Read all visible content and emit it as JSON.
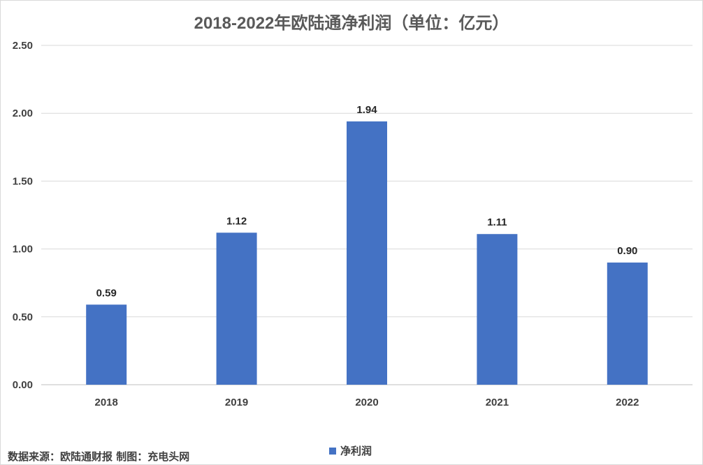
{
  "chart_data": {
    "type": "bar",
    "title": "2018-2022年欧陆通净利润（单位：亿元）",
    "categories": [
      "2018",
      "2019",
      "2020",
      "2021",
      "2022"
    ],
    "series": [
      {
        "name": "净利润",
        "values": [
          0.59,
          1.12,
          1.94,
          1.11,
          0.9
        ],
        "color": "#4472c4"
      }
    ],
    "data_labels": [
      "0.59",
      "1.12",
      "1.94",
      "1.11",
      "0.90"
    ],
    "yticks": [
      "0.00",
      "0.50",
      "1.00",
      "1.50",
      "2.00",
      "2.50"
    ],
    "ylim": [
      0,
      2.5
    ],
    "grid": true,
    "legend_position": "bottom",
    "source_note": "数据来源：欧陆通财报  制图：充电头网"
  }
}
